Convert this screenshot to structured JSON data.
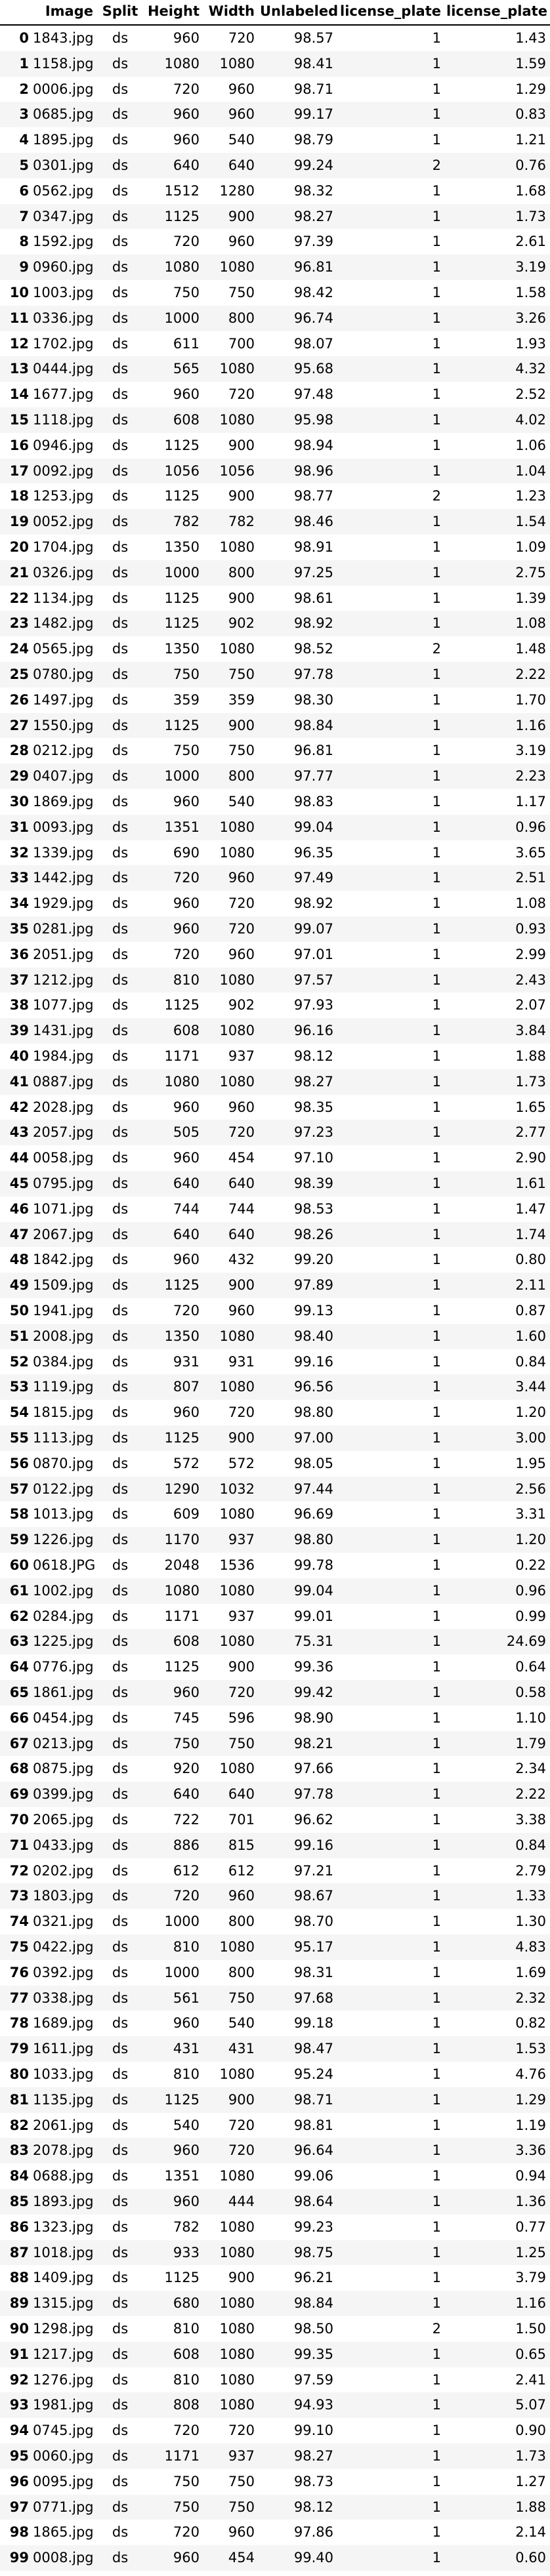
{
  "table": {
    "columns": [
      "",
      "Image",
      "Split",
      "Height",
      "Width",
      "Unlabeled",
      "license_plate",
      "license_plate"
    ],
    "rows": [
      [
        "0",
        "1843.jpg",
        "ds",
        "960",
        "720",
        "98.57",
        "1",
        "1.43"
      ],
      [
        "1",
        "1158.jpg",
        "ds",
        "1080",
        "1080",
        "98.41",
        "1",
        "1.59"
      ],
      [
        "2",
        "0006.jpg",
        "ds",
        "720",
        "960",
        "98.71",
        "1",
        "1.29"
      ],
      [
        "3",
        "0685.jpg",
        "ds",
        "960",
        "960",
        "99.17",
        "1",
        "0.83"
      ],
      [
        "4",
        "1895.jpg",
        "ds",
        "960",
        "540",
        "98.79",
        "1",
        "1.21"
      ],
      [
        "5",
        "0301.jpg",
        "ds",
        "640",
        "640",
        "99.24",
        "2",
        "0.76"
      ],
      [
        "6",
        "0562.jpg",
        "ds",
        "1512",
        "1280",
        "98.32",
        "1",
        "1.68"
      ],
      [
        "7",
        "0347.jpg",
        "ds",
        "1125",
        "900",
        "98.27",
        "1",
        "1.73"
      ],
      [
        "8",
        "1592.jpg",
        "ds",
        "720",
        "960",
        "97.39",
        "1",
        "2.61"
      ],
      [
        "9",
        "0960.jpg",
        "ds",
        "1080",
        "1080",
        "96.81",
        "1",
        "3.19"
      ],
      [
        "10",
        "1003.jpg",
        "ds",
        "750",
        "750",
        "98.42",
        "1",
        "1.58"
      ],
      [
        "11",
        "0336.jpg",
        "ds",
        "1000",
        "800",
        "96.74",
        "1",
        "3.26"
      ],
      [
        "12",
        "1702.jpg",
        "ds",
        "611",
        "700",
        "98.07",
        "1",
        "1.93"
      ],
      [
        "13",
        "0444.jpg",
        "ds",
        "565",
        "1080",
        "95.68",
        "1",
        "4.32"
      ],
      [
        "14",
        "1677.jpg",
        "ds",
        "960",
        "720",
        "97.48",
        "1",
        "2.52"
      ],
      [
        "15",
        "1118.jpg",
        "ds",
        "608",
        "1080",
        "95.98",
        "1",
        "4.02"
      ],
      [
        "16",
        "0946.jpg",
        "ds",
        "1125",
        "900",
        "98.94",
        "1",
        "1.06"
      ],
      [
        "17",
        "0092.jpg",
        "ds",
        "1056",
        "1056",
        "98.96",
        "1",
        "1.04"
      ],
      [
        "18",
        "1253.jpg",
        "ds",
        "1125",
        "900",
        "98.77",
        "2",
        "1.23"
      ],
      [
        "19",
        "0052.jpg",
        "ds",
        "782",
        "782",
        "98.46",
        "1",
        "1.54"
      ],
      [
        "20",
        "1704.jpg",
        "ds",
        "1350",
        "1080",
        "98.91",
        "1",
        "1.09"
      ],
      [
        "21",
        "0326.jpg",
        "ds",
        "1000",
        "800",
        "97.25",
        "1",
        "2.75"
      ],
      [
        "22",
        "1134.jpg",
        "ds",
        "1125",
        "900",
        "98.61",
        "1",
        "1.39"
      ],
      [
        "23",
        "1482.jpg",
        "ds",
        "1125",
        "902",
        "98.92",
        "1",
        "1.08"
      ],
      [
        "24",
        "0565.jpg",
        "ds",
        "1350",
        "1080",
        "98.52",
        "2",
        "1.48"
      ],
      [
        "25",
        "0780.jpg",
        "ds",
        "750",
        "750",
        "97.78",
        "1",
        "2.22"
      ],
      [
        "26",
        "1497.jpg",
        "ds",
        "359",
        "359",
        "98.30",
        "1",
        "1.70"
      ],
      [
        "27",
        "1550.jpg",
        "ds",
        "1125",
        "900",
        "98.84",
        "1",
        "1.16"
      ],
      [
        "28",
        "0212.jpg",
        "ds",
        "750",
        "750",
        "96.81",
        "1",
        "3.19"
      ],
      [
        "29",
        "0407.jpg",
        "ds",
        "1000",
        "800",
        "97.77",
        "1",
        "2.23"
      ],
      [
        "30",
        "1869.jpg",
        "ds",
        "960",
        "540",
        "98.83",
        "1",
        "1.17"
      ],
      [
        "31",
        "0093.jpg",
        "ds",
        "1351",
        "1080",
        "99.04",
        "1",
        "0.96"
      ],
      [
        "32",
        "1339.jpg",
        "ds",
        "690",
        "1080",
        "96.35",
        "1",
        "3.65"
      ],
      [
        "33",
        "1442.jpg",
        "ds",
        "720",
        "960",
        "97.49",
        "1",
        "2.51"
      ],
      [
        "34",
        "1929.jpg",
        "ds",
        "960",
        "720",
        "98.92",
        "1",
        "1.08"
      ],
      [
        "35",
        "0281.jpg",
        "ds",
        "960",
        "720",
        "99.07",
        "1",
        "0.93"
      ],
      [
        "36",
        "2051.jpg",
        "ds",
        "720",
        "960",
        "97.01",
        "1",
        "2.99"
      ],
      [
        "37",
        "1212.jpg",
        "ds",
        "810",
        "1080",
        "97.57",
        "1",
        "2.43"
      ],
      [
        "38",
        "1077.jpg",
        "ds",
        "1125",
        "902",
        "97.93",
        "1",
        "2.07"
      ],
      [
        "39",
        "1431.jpg",
        "ds",
        "608",
        "1080",
        "96.16",
        "1",
        "3.84"
      ],
      [
        "40",
        "1984.jpg",
        "ds",
        "1171",
        "937",
        "98.12",
        "1",
        "1.88"
      ],
      [
        "41",
        "0887.jpg",
        "ds",
        "1080",
        "1080",
        "98.27",
        "1",
        "1.73"
      ],
      [
        "42",
        "2028.jpg",
        "ds",
        "960",
        "960",
        "98.35",
        "1",
        "1.65"
      ],
      [
        "43",
        "2057.jpg",
        "ds",
        "505",
        "720",
        "97.23",
        "1",
        "2.77"
      ],
      [
        "44",
        "0058.jpg",
        "ds",
        "960",
        "454",
        "97.10",
        "1",
        "2.90"
      ],
      [
        "45",
        "0795.jpg",
        "ds",
        "640",
        "640",
        "98.39",
        "1",
        "1.61"
      ],
      [
        "46",
        "1071.jpg",
        "ds",
        "744",
        "744",
        "98.53",
        "1",
        "1.47"
      ],
      [
        "47",
        "2067.jpg",
        "ds",
        "640",
        "640",
        "98.26",
        "1",
        "1.74"
      ],
      [
        "48",
        "1842.jpg",
        "ds",
        "960",
        "432",
        "99.20",
        "1",
        "0.80"
      ],
      [
        "49",
        "1509.jpg",
        "ds",
        "1125",
        "900",
        "97.89",
        "1",
        "2.11"
      ],
      [
        "50",
        "1941.jpg",
        "ds",
        "720",
        "960",
        "99.13",
        "1",
        "0.87"
      ],
      [
        "51",
        "2008.jpg",
        "ds",
        "1350",
        "1080",
        "98.40",
        "1",
        "1.60"
      ],
      [
        "52",
        "0384.jpg",
        "ds",
        "931",
        "931",
        "99.16",
        "1",
        "0.84"
      ],
      [
        "53",
        "1119.jpg",
        "ds",
        "807",
        "1080",
        "96.56",
        "1",
        "3.44"
      ],
      [
        "54",
        "1815.jpg",
        "ds",
        "960",
        "720",
        "98.80",
        "1",
        "1.20"
      ],
      [
        "55",
        "1113.jpg",
        "ds",
        "1125",
        "900",
        "97.00",
        "1",
        "3.00"
      ],
      [
        "56",
        "0870.jpg",
        "ds",
        "572",
        "572",
        "98.05",
        "1",
        "1.95"
      ],
      [
        "57",
        "0122.jpg",
        "ds",
        "1290",
        "1032",
        "97.44",
        "1",
        "2.56"
      ],
      [
        "58",
        "1013.jpg",
        "ds",
        "609",
        "1080",
        "96.69",
        "1",
        "3.31"
      ],
      [
        "59",
        "1226.jpg",
        "ds",
        "1170",
        "937",
        "98.80",
        "1",
        "1.20"
      ],
      [
        "60",
        "0618.JPG",
        "ds",
        "2048",
        "1536",
        "99.78",
        "1",
        "0.22"
      ],
      [
        "61",
        "1002.jpg",
        "ds",
        "1080",
        "1080",
        "99.04",
        "1",
        "0.96"
      ],
      [
        "62",
        "0284.jpg",
        "ds",
        "1171",
        "937",
        "99.01",
        "1",
        "0.99"
      ],
      [
        "63",
        "1225.jpg",
        "ds",
        "608",
        "1080",
        "75.31",
        "1",
        "24.69"
      ],
      [
        "64",
        "0776.jpg",
        "ds",
        "1125",
        "900",
        "99.36",
        "1",
        "0.64"
      ],
      [
        "65",
        "1861.jpg",
        "ds",
        "960",
        "720",
        "99.42",
        "1",
        "0.58"
      ],
      [
        "66",
        "0454.jpg",
        "ds",
        "745",
        "596",
        "98.90",
        "1",
        "1.10"
      ],
      [
        "67",
        "0213.jpg",
        "ds",
        "750",
        "750",
        "98.21",
        "1",
        "1.79"
      ],
      [
        "68",
        "0875.jpg",
        "ds",
        "920",
        "1080",
        "97.66",
        "1",
        "2.34"
      ],
      [
        "69",
        "0399.jpg",
        "ds",
        "640",
        "640",
        "97.78",
        "1",
        "2.22"
      ],
      [
        "70",
        "2065.jpg",
        "ds",
        "722",
        "701",
        "96.62",
        "1",
        "3.38"
      ],
      [
        "71",
        "0433.jpg",
        "ds",
        "886",
        "815",
        "99.16",
        "1",
        "0.84"
      ],
      [
        "72",
        "0202.jpg",
        "ds",
        "612",
        "612",
        "97.21",
        "1",
        "2.79"
      ],
      [
        "73",
        "1803.jpg",
        "ds",
        "720",
        "960",
        "98.67",
        "1",
        "1.33"
      ],
      [
        "74",
        "0321.jpg",
        "ds",
        "1000",
        "800",
        "98.70",
        "1",
        "1.30"
      ],
      [
        "75",
        "0422.jpg",
        "ds",
        "810",
        "1080",
        "95.17",
        "1",
        "4.83"
      ],
      [
        "76",
        "0392.jpg",
        "ds",
        "1000",
        "800",
        "98.31",
        "1",
        "1.69"
      ],
      [
        "77",
        "0338.jpg",
        "ds",
        "561",
        "750",
        "97.68",
        "1",
        "2.32"
      ],
      [
        "78",
        "1689.jpg",
        "ds",
        "960",
        "540",
        "99.18",
        "1",
        "0.82"
      ],
      [
        "79",
        "1611.jpg",
        "ds",
        "431",
        "431",
        "98.47",
        "1",
        "1.53"
      ],
      [
        "80",
        "1033.jpg",
        "ds",
        "810",
        "1080",
        "95.24",
        "1",
        "4.76"
      ],
      [
        "81",
        "1135.jpg",
        "ds",
        "1125",
        "900",
        "98.71",
        "1",
        "1.29"
      ],
      [
        "82",
        "2061.jpg",
        "ds",
        "540",
        "720",
        "98.81",
        "1",
        "1.19"
      ],
      [
        "83",
        "2078.jpg",
        "ds",
        "960",
        "720",
        "96.64",
        "1",
        "3.36"
      ],
      [
        "84",
        "0688.jpg",
        "ds",
        "1351",
        "1080",
        "99.06",
        "1",
        "0.94"
      ],
      [
        "85",
        "1893.jpg",
        "ds",
        "960",
        "444",
        "98.64",
        "1",
        "1.36"
      ],
      [
        "86",
        "1323.jpg",
        "ds",
        "782",
        "1080",
        "99.23",
        "1",
        "0.77"
      ],
      [
        "87",
        "1018.jpg",
        "ds",
        "933",
        "1080",
        "98.75",
        "1",
        "1.25"
      ],
      [
        "88",
        "1409.jpg",
        "ds",
        "1125",
        "900",
        "96.21",
        "1",
        "3.79"
      ],
      [
        "89",
        "1315.jpg",
        "ds",
        "680",
        "1080",
        "98.84",
        "1",
        "1.16"
      ],
      [
        "90",
        "1298.jpg",
        "ds",
        "810",
        "1080",
        "98.50",
        "2",
        "1.50"
      ],
      [
        "91",
        "1217.jpg",
        "ds",
        "608",
        "1080",
        "99.35",
        "1",
        "0.65"
      ],
      [
        "92",
        "1276.jpg",
        "ds",
        "810",
        "1080",
        "97.59",
        "1",
        "2.41"
      ],
      [
        "93",
        "1981.jpg",
        "ds",
        "808",
        "1080",
        "94.93",
        "1",
        "5.07"
      ],
      [
        "94",
        "0745.jpg",
        "ds",
        "720",
        "720",
        "99.10",
        "1",
        "0.90"
      ],
      [
        "95",
        "0060.jpg",
        "ds",
        "1171",
        "937",
        "98.27",
        "1",
        "1.73"
      ],
      [
        "96",
        "0095.jpg",
        "ds",
        "750",
        "750",
        "98.73",
        "1",
        "1.27"
      ],
      [
        "97",
        "0771.jpg",
        "ds",
        "750",
        "750",
        "98.12",
        "1",
        "1.88"
      ],
      [
        "98",
        "1865.jpg",
        "ds",
        "720",
        "960",
        "97.86",
        "1",
        "2.14"
      ],
      [
        "99",
        "0008.jpg",
        "ds",
        "960",
        "454",
        "99.40",
        "1",
        "0.60"
      ]
    ]
  }
}
